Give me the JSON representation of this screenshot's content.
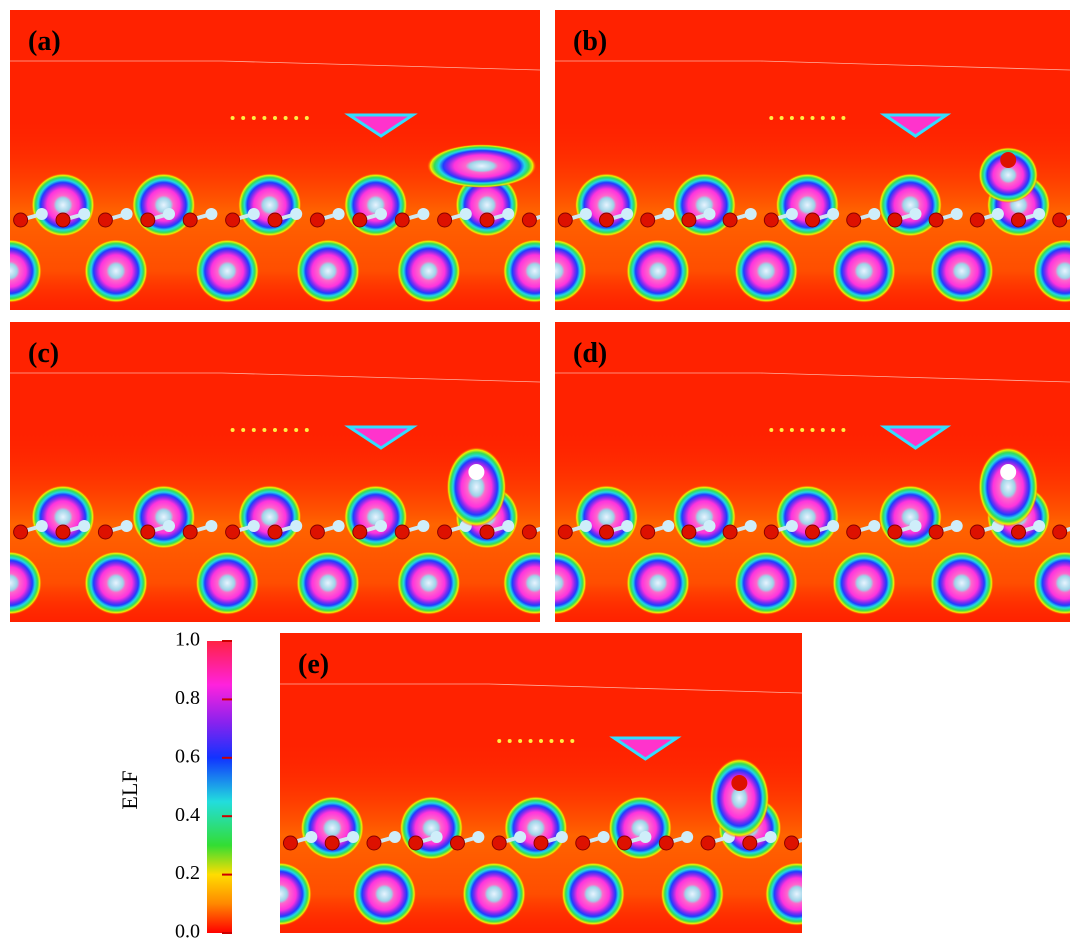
{
  "panels": [
    {
      "label": "(a)"
    },
    {
      "label": "(b)"
    },
    {
      "label": "(c)"
    },
    {
      "label": "(d)"
    },
    {
      "label": "(e)"
    }
  ],
  "colorbar": {
    "title": "ELF",
    "lim": [
      0,
      1
    ],
    "ticks": [
      {
        "value": 0,
        "label": "0.0"
      },
      {
        "value": 0.2,
        "label": "0.2"
      },
      {
        "value": 0.4,
        "label": "0.4"
      },
      {
        "value": 0.6,
        "label": "0.6"
      },
      {
        "value": 0.8,
        "label": "0.8"
      },
      {
        "value": 1,
        "label": "1.0"
      }
    ]
  }
}
